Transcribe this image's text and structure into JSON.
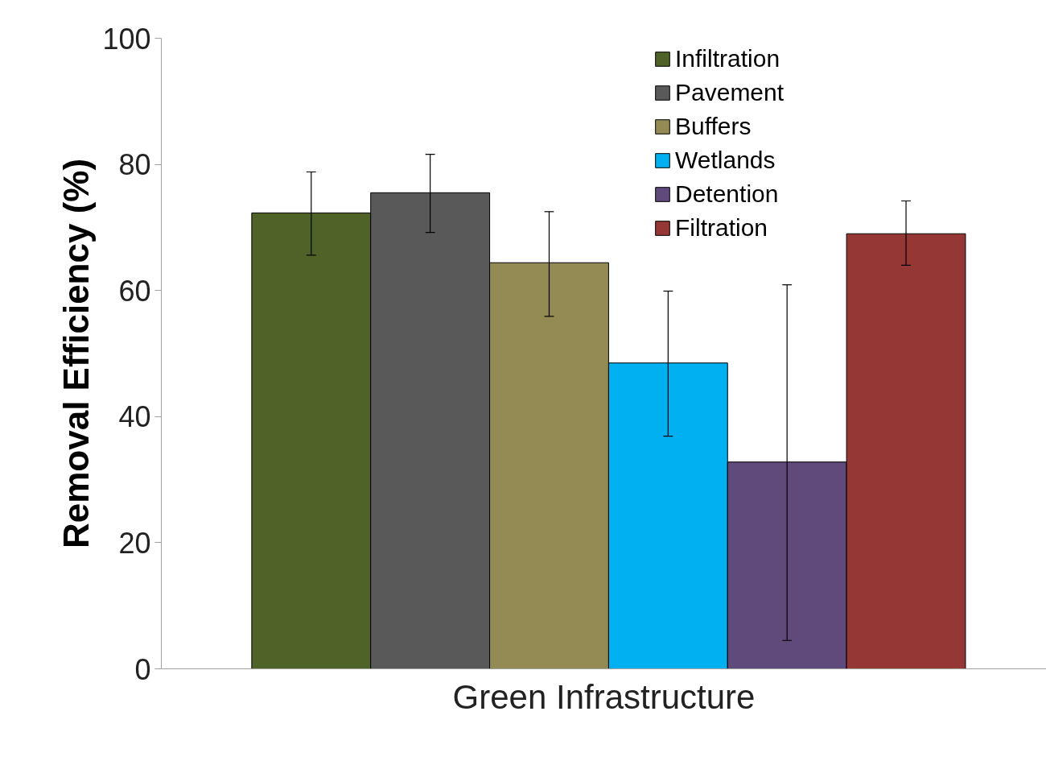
{
  "chart_data": {
    "type": "bar",
    "xlabel": "Green Infrastructure",
    "ylabel": "Removal Efficiency (%)",
    "categories": [
      null
    ],
    "series": [
      {
        "name": "Infiltration",
        "color": "#4f6228",
        "values": [
          72.3
        ],
        "errors": [
          [
            65.6,
            78.8
          ]
        ]
      },
      {
        "name": "Pavement",
        "color": "#595959",
        "values": [
          75.5
        ],
        "errors": [
          [
            69.2,
            81.6
          ]
        ]
      },
      {
        "name": "Buffers",
        "color": "#948a54",
        "values": [
          64.4
        ],
        "errors": [
          [
            55.9,
            72.5
          ]
        ]
      },
      {
        "name": "Wetlands",
        "color": "#00b0f0",
        "values": [
          48.5
        ],
        "errors": [
          [
            36.9,
            59.9
          ]
        ]
      },
      {
        "name": "Detention",
        "color": "#604a7b",
        "values": [
          32.8
        ],
        "errors": [
          [
            4.5,
            60.9
          ]
        ]
      },
      {
        "name": "Filtration",
        "color": "#953735",
        "values": [
          69.0
        ],
        "errors": [
          [
            64.0,
            74.2
          ]
        ]
      }
    ],
    "ylim": [
      0,
      100
    ],
    "yticks": [
      0,
      20,
      40,
      60,
      80,
      100
    ],
    "grid": false,
    "legend": "top right"
  }
}
